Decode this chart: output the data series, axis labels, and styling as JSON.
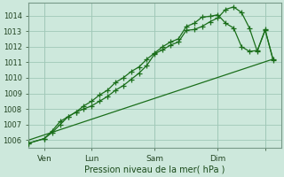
{
  "background_color": "#cde8dc",
  "grid_color": "#a0c8b8",
  "line_color": "#1a6e1a",
  "title": "Pression niveau de la mer( hPa )",
  "ylim": [
    1005.5,
    1014.8
  ],
  "xlim": [
    0,
    96
  ],
  "yticks": [
    1006,
    1007,
    1008,
    1009,
    1010,
    1011,
    1012,
    1013,
    1014
  ],
  "xtick_positions": [
    6,
    24,
    48,
    72,
    90
  ],
  "xtick_labels": [
    "Ven",
    "Lun",
    "Sam",
    "Dim",
    ""
  ],
  "day_lines": [
    6,
    24,
    48,
    72,
    90
  ],
  "series1_x": [
    0,
    6,
    9,
    12,
    15,
    18,
    21,
    24,
    27,
    30,
    33,
    36,
    39,
    42,
    45,
    48,
    51,
    54,
    57,
    60,
    63,
    66,
    69,
    72,
    75,
    78,
    81,
    84,
    87,
    90,
    93
  ],
  "series1_y": [
    1005.8,
    1006.1,
    1006.6,
    1007.2,
    1007.5,
    1007.8,
    1008.0,
    1008.2,
    1008.5,
    1008.8,
    1009.2,
    1009.5,
    1009.9,
    1010.3,
    1010.8,
    1011.55,
    1011.8,
    1012.1,
    1012.3,
    1013.05,
    1013.1,
    1013.3,
    1013.6,
    1013.85,
    1014.4,
    1014.55,
    1014.2,
    1013.2,
    1011.7,
    1013.1,
    1011.15
  ],
  "series2_x": [
    0,
    6,
    9,
    12,
    15,
    18,
    21,
    24,
    27,
    30,
    33,
    36,
    39,
    42,
    45,
    48,
    51,
    54,
    57,
    60,
    63,
    66,
    69,
    72,
    75,
    78,
    81,
    84,
    87,
    90,
    93
  ],
  "series2_y": [
    1005.8,
    1006.1,
    1006.5,
    1007.0,
    1007.5,
    1007.8,
    1008.2,
    1008.5,
    1008.9,
    1009.2,
    1009.7,
    1010.0,
    1010.4,
    1010.7,
    1011.2,
    1011.6,
    1012.0,
    1012.3,
    1012.5,
    1013.3,
    1013.5,
    1013.9,
    1013.95,
    1014.05,
    1013.5,
    1013.2,
    1012.0,
    1011.7,
    1011.75,
    1013.05,
    1011.2
  ],
  "series3_x": [
    0,
    93
  ],
  "series3_y": [
    1006.0,
    1011.2
  ]
}
